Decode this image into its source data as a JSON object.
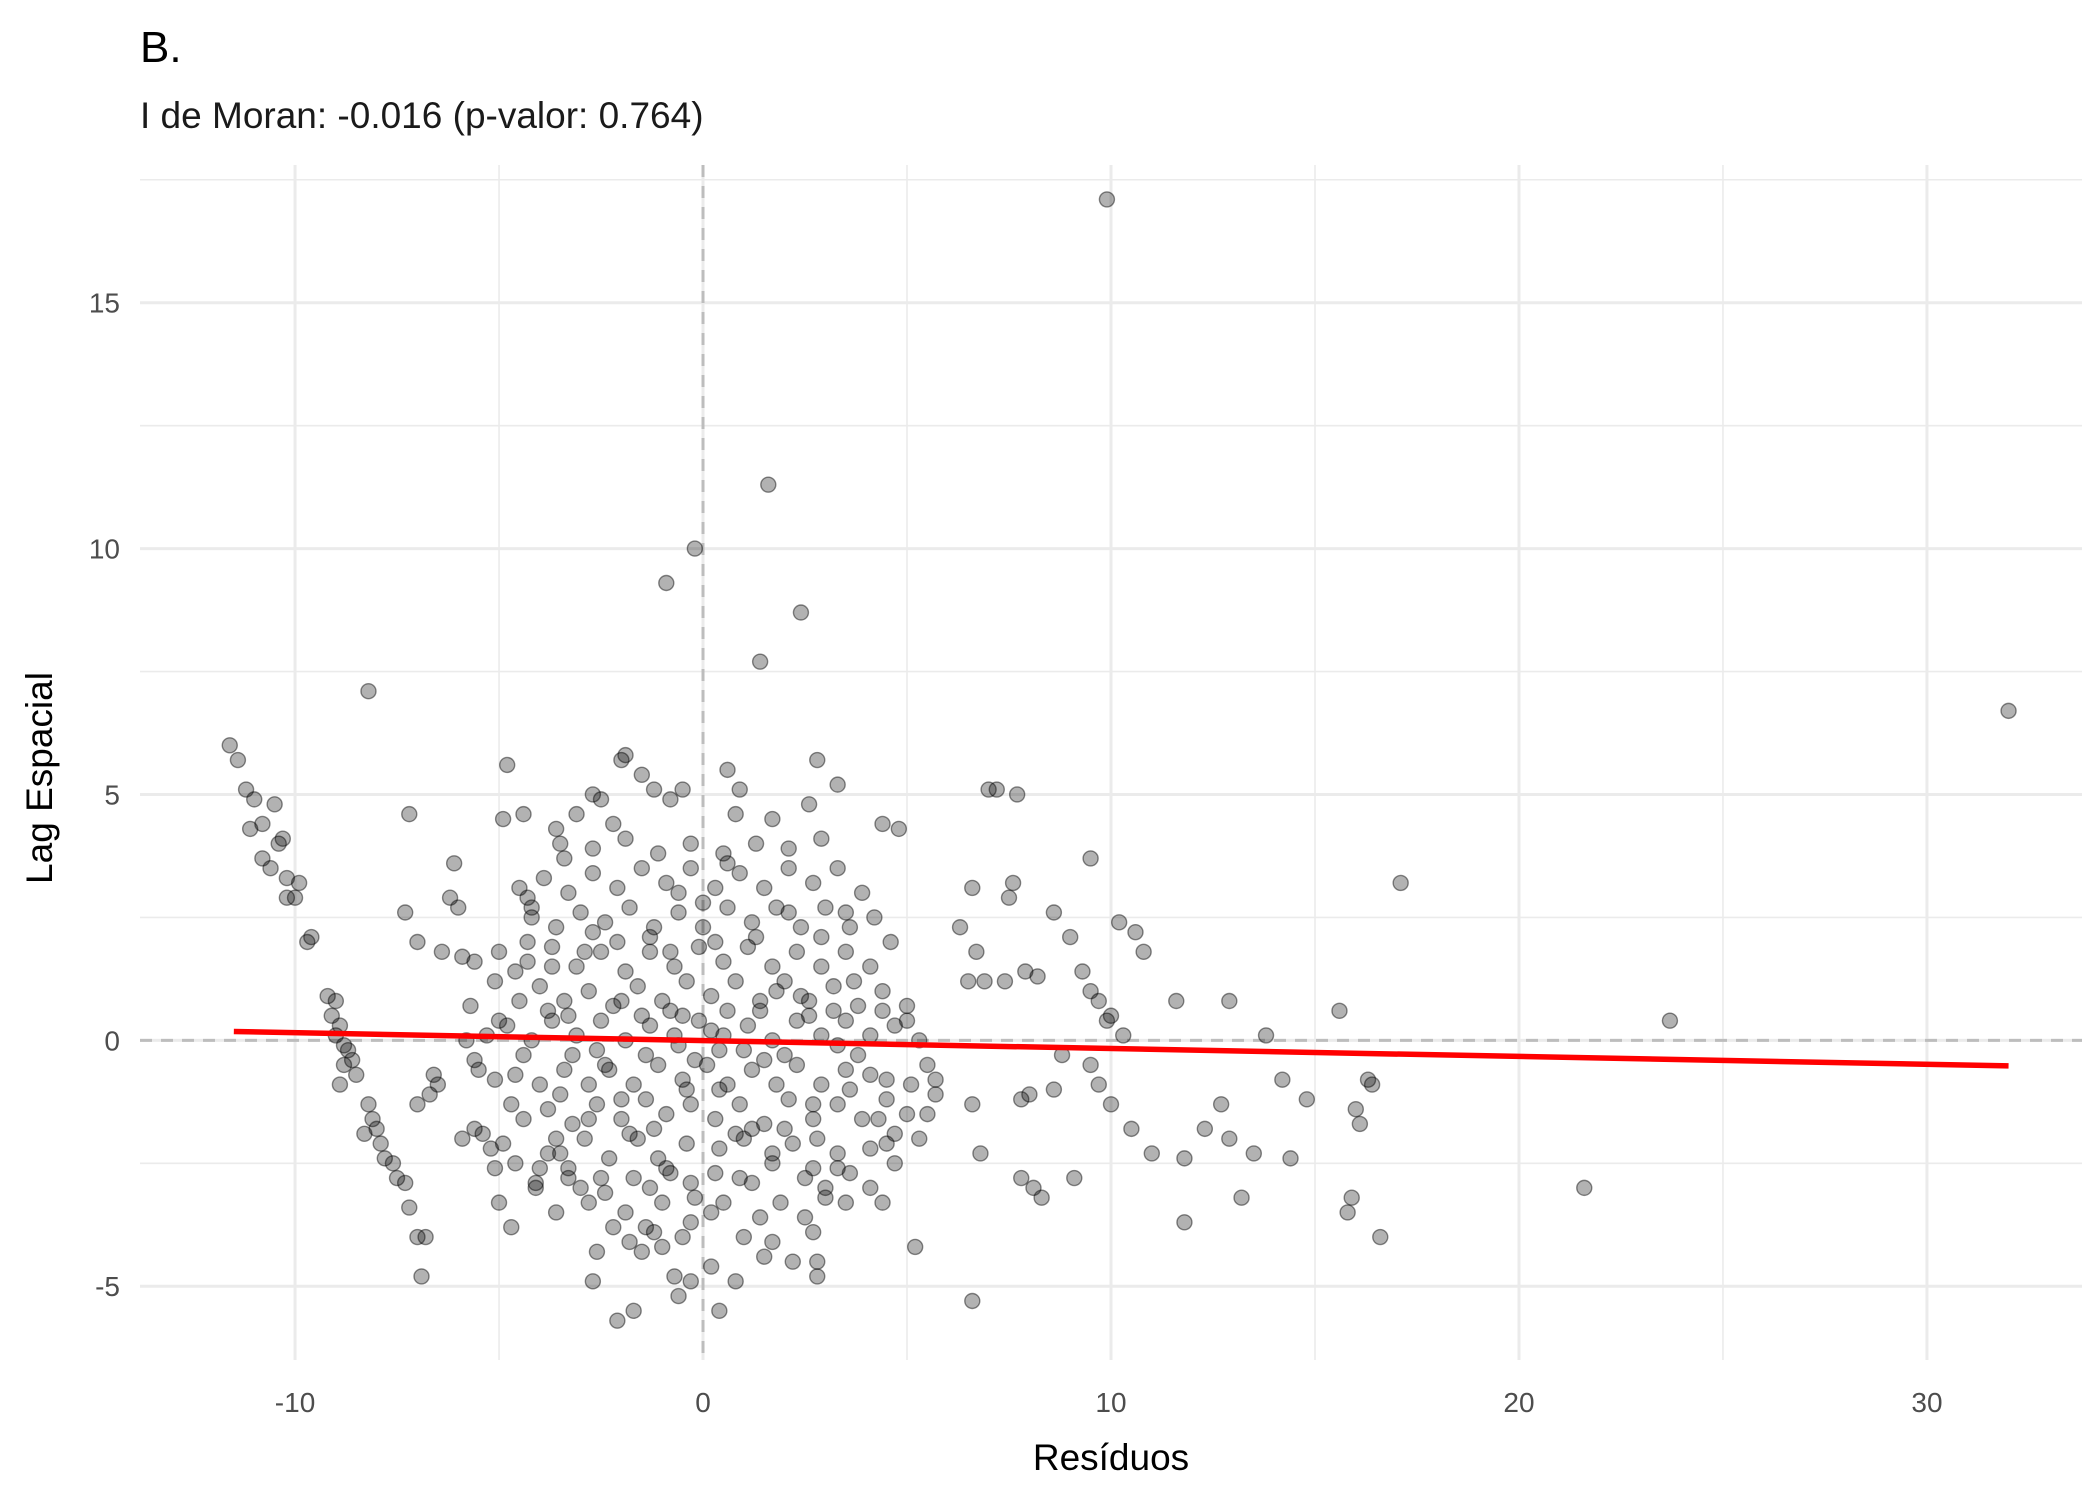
{
  "chart_data": {
    "type": "scatter",
    "title": "B.",
    "subtitle": "I de Moran: -0.016 (p-valor: 0.764)",
    "xlabel": "Resíduos",
    "ylabel": "Lag Espacial",
    "xlim": [
      -13.8,
      33.8
    ],
    "ylim": [
      -6.5,
      17.8
    ],
    "x_ticks": [
      -10,
      0,
      10,
      20,
      30
    ],
    "y_ticks": [
      -5,
      0,
      5,
      10,
      15
    ],
    "x_tick_labels": [
      "-10",
      "0",
      "10",
      "20",
      "30"
    ],
    "y_tick_labels": [
      "-5",
      "0",
      "5",
      "10",
      "15"
    ],
    "grid": true,
    "reference_lines": {
      "x": 0,
      "y": 0
    },
    "regression_line": {
      "x": [
        -11.5,
        32
      ],
      "y": [
        0.18,
        -0.52
      ]
    },
    "colors": {
      "points": "#000000",
      "regression": "#ff0000",
      "grid": "#ebebeb",
      "reference": "#bdbdbd"
    },
    "points": [
      [
        9.9,
        17.1
      ],
      [
        1.6,
        11.3
      ],
      [
        -0.2,
        10.0
      ],
      [
        -0.9,
        9.3
      ],
      [
        2.4,
        8.7
      ],
      [
        1.4,
        7.7
      ],
      [
        -8.2,
        7.1
      ],
      [
        32.0,
        6.7
      ],
      [
        -11.6,
        6.0
      ],
      [
        -11.4,
        5.7
      ],
      [
        -11.2,
        5.1
      ],
      [
        -11.0,
        4.9
      ],
      [
        -10.5,
        4.8
      ],
      [
        -10.8,
        4.4
      ],
      [
        -11.1,
        4.3
      ],
      [
        -10.3,
        4.1
      ],
      [
        -10.4,
        4.0
      ],
      [
        -10.8,
        3.7
      ],
      [
        -10.6,
        3.5
      ],
      [
        -10.2,
        3.3
      ],
      [
        -9.9,
        3.2
      ],
      [
        -10.2,
        2.9
      ],
      [
        -10.0,
        2.9
      ],
      [
        -9.6,
        2.1
      ],
      [
        -9.7,
        2.0
      ],
      [
        -9.2,
        0.9
      ],
      [
        -9.0,
        0.8
      ],
      [
        -9.1,
        0.5
      ],
      [
        -8.9,
        0.3
      ],
      [
        -9.0,
        0.1
      ],
      [
        -8.8,
        -0.1
      ],
      [
        -8.7,
        -0.2
      ],
      [
        -8.6,
        -0.4
      ],
      [
        -8.8,
        -0.5
      ],
      [
        -8.5,
        -0.7
      ],
      [
        -8.9,
        -0.9
      ],
      [
        -8.2,
        -1.3
      ],
      [
        -8.1,
        -1.6
      ],
      [
        -8.0,
        -1.8
      ],
      [
        -8.3,
        -1.9
      ],
      [
        -7.9,
        -2.1
      ],
      [
        -7.8,
        -2.4
      ],
      [
        -7.6,
        -2.5
      ],
      [
        -7.5,
        -2.8
      ],
      [
        -7.3,
        -2.9
      ],
      [
        -7.2,
        -3.4
      ],
      [
        -7.0,
        -4.0
      ],
      [
        -6.8,
        -4.0
      ],
      [
        -6.9,
        -4.8
      ],
      [
        -7.3,
        2.6
      ],
      [
        -7.2,
        4.6
      ],
      [
        -7.0,
        2.0
      ],
      [
        -6.1,
        3.6
      ],
      [
        -6.2,
        2.9
      ],
      [
        -6.0,
        2.7
      ],
      [
        -6.4,
        1.8
      ],
      [
        -5.9,
        1.7
      ],
      [
        -5.7,
        0.7
      ],
      [
        -5.8,
        0.0
      ],
      [
        -6.6,
        -0.7
      ],
      [
        -6.5,
        -0.9
      ],
      [
        -6.7,
        -1.1
      ],
      [
        -7.0,
        -1.3
      ],
      [
        -5.6,
        -1.8
      ],
      [
        -5.9,
        -2.0
      ],
      [
        -5.1,
        -2.6
      ],
      [
        -5.0,
        -3.3
      ],
      [
        -4.7,
        -3.8
      ],
      [
        -4.8,
        5.6
      ],
      [
        -4.9,
        4.5
      ],
      [
        -4.4,
        4.6
      ],
      [
        -4.5,
        3.1
      ],
      [
        -4.3,
        2.9
      ],
      [
        -4.2,
        2.7
      ],
      [
        -3.6,
        4.3
      ],
      [
        -3.4,
        3.7
      ],
      [
        -3.1,
        4.6
      ],
      [
        -2.7,
        5.0
      ],
      [
        -2.5,
        4.9
      ],
      [
        -2.2,
        4.4
      ],
      [
        -1.9,
        5.8
      ],
      [
        -2.0,
        5.7
      ],
      [
        -1.5,
        5.4
      ],
      [
        -1.2,
        5.1
      ],
      [
        -0.8,
        4.9
      ],
      [
        -0.5,
        5.1
      ],
      [
        0.6,
        5.5
      ],
      [
        0.9,
        5.1
      ],
      [
        0.8,
        4.6
      ],
      [
        2.8,
        5.7
      ],
      [
        3.3,
        5.2
      ],
      [
        2.6,
        4.8
      ],
      [
        1.7,
        4.5
      ],
      [
        4.4,
        4.4
      ],
      [
        4.8,
        4.3
      ],
      [
        7.0,
        5.1
      ],
      [
        7.2,
        5.1
      ],
      [
        7.7,
        5.0
      ],
      [
        9.5,
        3.7
      ],
      [
        6.6,
        3.1
      ],
      [
        7.5,
        2.9
      ],
      [
        7.6,
        3.2
      ],
      [
        17.1,
        3.2
      ],
      [
        10.2,
        2.4
      ],
      [
        10.6,
        2.2
      ],
      [
        10.8,
        1.8
      ],
      [
        8.6,
        2.6
      ],
      [
        9.0,
        2.1
      ],
      [
        8.2,
        1.3
      ],
      [
        7.9,
        1.4
      ],
      [
        6.3,
        2.3
      ],
      [
        6.7,
        1.8
      ],
      [
        6.5,
        1.2
      ],
      [
        6.9,
        1.2
      ],
      [
        7.4,
        1.2
      ],
      [
        9.3,
        1.4
      ],
      [
        9.5,
        1.0
      ],
      [
        9.7,
        0.8
      ],
      [
        10.0,
        0.5
      ],
      [
        10.3,
        0.1
      ],
      [
        11.6,
        0.8
      ],
      [
        12.9,
        0.8
      ],
      [
        15.6,
        0.6
      ],
      [
        23.7,
        0.4
      ],
      [
        13.8,
        0.1
      ],
      [
        9.9,
        0.4
      ],
      [
        8.8,
        -0.3
      ],
      [
        9.5,
        -0.5
      ],
      [
        14.2,
        -0.8
      ],
      [
        14.8,
        -1.2
      ],
      [
        16.3,
        -0.8
      ],
      [
        16.4,
        -0.9
      ],
      [
        16.0,
        -1.4
      ],
      [
        16.1,
        -1.7
      ],
      [
        12.7,
        -1.3
      ],
      [
        12.3,
        -1.8
      ],
      [
        10.5,
        -1.8
      ],
      [
        11.0,
        -2.3
      ],
      [
        11.8,
        -2.4
      ],
      [
        12.9,
        -2.0
      ],
      [
        13.5,
        -2.3
      ],
      [
        14.4,
        -2.4
      ],
      [
        10.0,
        -1.3
      ],
      [
        9.7,
        -0.9
      ],
      [
        8.6,
        -1.0
      ],
      [
        8.0,
        -1.1
      ],
      [
        7.8,
        -1.2
      ],
      [
        8.1,
        -3.0
      ],
      [
        8.3,
        -3.2
      ],
      [
        7.8,
        -2.8
      ],
      [
        9.1,
        -2.8
      ],
      [
        6.6,
        -1.3
      ],
      [
        6.8,
        -2.3
      ],
      [
        6.6,
        -5.3
      ],
      [
        5.2,
        -4.2
      ],
      [
        5.7,
        -1.1
      ],
      [
        5.1,
        -0.9
      ],
      [
        5.7,
        -0.8
      ],
      [
        13.2,
        -3.2
      ],
      [
        11.8,
        -3.7
      ],
      [
        15.9,
        -3.2
      ],
      [
        15.8,
        -3.5
      ],
      [
        16.6,
        -4.0
      ],
      [
        21.6,
        -3.0
      ],
      [
        -2.1,
        -5.7
      ],
      [
        -1.7,
        -5.5
      ],
      [
        -0.6,
        -5.2
      ],
      [
        0.4,
        -5.5
      ],
      [
        -0.3,
        -4.9
      ],
      [
        0.2,
        -4.6
      ],
      [
        0.8,
        -4.9
      ],
      [
        -0.7,
        -4.8
      ],
      [
        -2.6,
        -4.3
      ],
      [
        -2.7,
        -4.9
      ],
      [
        2.8,
        -4.8
      ],
      [
        2.8,
        -4.5
      ],
      [
        2.2,
        -4.5
      ],
      [
        1.7,
        -4.1
      ],
      [
        1.5,
        -4.4
      ],
      [
        -1.8,
        -4.1
      ],
      [
        -1.5,
        -4.3
      ],
      [
        -1.2,
        -3.9
      ],
      [
        -0.3,
        -3.7
      ],
      [
        -0.5,
        -4.0
      ],
      [
        -3.6,
        -3.5
      ],
      [
        -4.1,
        -3.0
      ],
      [
        -3.3,
        -2.8
      ],
      [
        -3.8,
        -2.3
      ],
      [
        -2.8,
        -3.3
      ],
      [
        -2.4,
        -3.1
      ],
      [
        -1.9,
        -3.5
      ],
      [
        -1.3,
        -3.0
      ],
      [
        -0.8,
        -2.7
      ],
      [
        -1.0,
        -3.3
      ],
      [
        -0.3,
        -2.9
      ],
      [
        0.3,
        -2.7
      ],
      [
        0.5,
        -3.3
      ],
      [
        1.2,
        -2.9
      ],
      [
        1.9,
        -3.3
      ],
      [
        2.5,
        -3.6
      ],
      [
        3.0,
        -3.2
      ],
      [
        3.5,
        -3.3
      ],
      [
        4.1,
        -3.0
      ],
      [
        4.4,
        -3.3
      ],
      [
        4.7,
        -2.5
      ],
      [
        4.5,
        -2.1
      ],
      [
        5.3,
        -2.0
      ],
      [
        5.5,
        -1.5
      ],
      [
        3.6,
        -2.7
      ],
      [
        3.3,
        -2.3
      ],
      [
        2.7,
        -2.6
      ],
      [
        2.2,
        -2.1
      ],
      [
        1.7,
        -2.5
      ],
      [
        1.0,
        -2.0
      ],
      [
        0.4,
        -2.2
      ],
      [
        -0.4,
        -2.1
      ],
      [
        -1.1,
        -2.4
      ],
      [
        -1.6,
        -2.0
      ],
      [
        -2.3,
        -2.4
      ],
      [
        -2.9,
        -2.0
      ],
      [
        -3.5,
        -2.3
      ],
      [
        -4.0,
        -2.6
      ],
      [
        -4.6,
        -2.5
      ],
      [
        -4.9,
        -2.1
      ],
      [
        -5.2,
        -2.2
      ],
      [
        -5.4,
        -1.9
      ],
      [
        -4.4,
        -1.6
      ],
      [
        -3.8,
        -1.4
      ],
      [
        -3.2,
        -1.7
      ],
      [
        -2.6,
        -1.3
      ],
      [
        -2.0,
        -1.6
      ],
      [
        -1.4,
        -1.2
      ],
      [
        -0.9,
        -1.5
      ],
      [
        -0.3,
        -1.3
      ],
      [
        0.3,
        -1.6
      ],
      [
        0.9,
        -1.3
      ],
      [
        1.5,
        -1.7
      ],
      [
        2.1,
        -1.2
      ],
      [
        2.7,
        -1.6
      ],
      [
        3.3,
        -1.3
      ],
      [
        3.9,
        -1.6
      ],
      [
        4.5,
        -1.2
      ],
      [
        5.0,
        -1.5
      ],
      [
        4.1,
        -0.7
      ],
      [
        3.5,
        -0.6
      ],
      [
        2.9,
        -0.9
      ],
      [
        2.3,
        -0.5
      ],
      [
        1.8,
        -0.9
      ],
      [
        1.2,
        -0.6
      ],
      [
        0.6,
        -0.9
      ],
      [
        0.1,
        -0.5
      ],
      [
        -0.5,
        -0.8
      ],
      [
        -1.1,
        -0.5
      ],
      [
        -1.7,
        -0.9
      ],
      [
        -2.3,
        -0.6
      ],
      [
        -2.8,
        -0.9
      ],
      [
        -3.4,
        -0.6
      ],
      [
        -4.0,
        -0.9
      ],
      [
        -4.6,
        -0.7
      ],
      [
        -5.1,
        -0.8
      ],
      [
        -5.6,
        -0.4
      ],
      [
        -5.3,
        0.1
      ],
      [
        -4.8,
        0.3
      ],
      [
        -4.2,
        0.0
      ],
      [
        -3.7,
        0.4
      ],
      [
        -3.1,
        0.1
      ],
      [
        -2.5,
        0.4
      ],
      [
        -1.9,
        0.0
      ],
      [
        -1.3,
        0.3
      ],
      [
        -0.7,
        0.1
      ],
      [
        -0.1,
        0.4
      ],
      [
        0.5,
        0.1
      ],
      [
        1.1,
        0.3
      ],
      [
        1.7,
        0.0
      ],
      [
        2.3,
        0.4
      ],
      [
        2.9,
        0.1
      ],
      [
        3.5,
        0.4
      ],
      [
        4.1,
        0.1
      ],
      [
        4.7,
        0.3
      ],
      [
        5.3,
        0.0
      ],
      [
        5.0,
        0.7
      ],
      [
        4.4,
        1.0
      ],
      [
        3.8,
        0.7
      ],
      [
        3.2,
        1.1
      ],
      [
        2.6,
        0.8
      ],
      [
        2.0,
        1.2
      ],
      [
        1.4,
        0.8
      ],
      [
        0.8,
        1.2
      ],
      [
        0.2,
        0.9
      ],
      [
        -0.4,
        1.2
      ],
      [
        -1.0,
        0.8
      ],
      [
        -1.6,
        1.1
      ],
      [
        -2.2,
        0.7
      ],
      [
        -2.8,
        1.0
      ],
      [
        -3.4,
        0.8
      ],
      [
        -4.0,
        1.1
      ],
      [
        -4.6,
        1.4
      ],
      [
        -5.1,
        1.2
      ],
      [
        -5.6,
        1.6
      ],
      [
        -5.0,
        1.8
      ],
      [
        -4.3,
        1.6
      ],
      [
        -3.7,
        1.9
      ],
      [
        -3.1,
        1.5
      ],
      [
        -2.5,
        1.8
      ],
      [
        -1.9,
        1.4
      ],
      [
        -1.3,
        1.8
      ],
      [
        -0.7,
        1.5
      ],
      [
        -0.1,
        1.9
      ],
      [
        0.5,
        1.6
      ],
      [
        1.1,
        1.9
      ],
      [
        1.7,
        1.5
      ],
      [
        2.3,
        1.8
      ],
      [
        2.9,
        1.5
      ],
      [
        3.5,
        1.8
      ],
      [
        4.1,
        1.5
      ],
      [
        4.6,
        2.0
      ],
      [
        4.2,
        2.5
      ],
      [
        3.6,
        2.3
      ],
      [
        3.0,
        2.7
      ],
      [
        2.4,
        2.3
      ],
      [
        1.8,
        2.7
      ],
      [
        1.2,
        2.4
      ],
      [
        0.6,
        2.7
      ],
      [
        0.0,
        2.3
      ],
      [
        -0.6,
        2.6
      ],
      [
        -1.2,
        2.3
      ],
      [
        -1.8,
        2.7
      ],
      [
        -2.4,
        2.4
      ],
      [
        -3.0,
        2.6
      ],
      [
        -3.6,
        2.3
      ],
      [
        -4.2,
        2.5
      ],
      [
        -3.9,
        3.3
      ],
      [
        -3.3,
        3.0
      ],
      [
        -2.7,
        3.4
      ],
      [
        -2.1,
        3.1
      ],
      [
        -1.5,
        3.5
      ],
      [
        -0.9,
        3.2
      ],
      [
        -0.3,
        3.5
      ],
      [
        0.3,
        3.1
      ],
      [
        0.9,
        3.4
      ],
      [
        1.5,
        3.1
      ],
      [
        2.1,
        3.5
      ],
      [
        2.7,
        3.2
      ],
      [
        3.3,
        3.5
      ],
      [
        3.9,
        3.0
      ],
      [
        2.9,
        4.1
      ],
      [
        2.1,
        3.9
      ],
      [
        1.3,
        4.0
      ],
      [
        0.5,
        3.8
      ],
      [
        -0.3,
        4.0
      ],
      [
        -1.1,
        3.8
      ],
      [
        -1.9,
        4.1
      ],
      [
        -2.7,
        3.9
      ],
      [
        -3.5,
        4.0
      ],
      [
        0.0,
        2.8
      ],
      [
        0.3,
        2.0
      ],
      [
        -0.5,
        0.5
      ],
      [
        0.4,
        -0.2
      ],
      [
        -0.2,
        -0.4
      ],
      [
        0.6,
        0.6
      ],
      [
        -0.6,
        -0.1
      ],
      [
        0.2,
        0.2
      ],
      [
        -0.8,
        0.6
      ],
      [
        1.0,
        -0.2
      ],
      [
        -1.4,
        -0.3
      ],
      [
        1.4,
        0.6
      ],
      [
        -2.0,
        0.8
      ],
      [
        2.0,
        -0.3
      ],
      [
        -2.6,
        -0.2
      ],
      [
        2.6,
        0.5
      ],
      [
        -3.2,
        -0.3
      ],
      [
        3.2,
        0.6
      ],
      [
        -3.8,
        0.6
      ],
      [
        3.8,
        -0.3
      ],
      [
        -4.4,
        -0.3
      ],
      [
        4.4,
        0.6
      ],
      [
        -0.4,
        -1.0
      ],
      [
        0.4,
        -1.0
      ],
      [
        -1.2,
        -1.8
      ],
      [
        1.2,
        -1.8
      ],
      [
        -2.0,
        -1.2
      ],
      [
        2.0,
        -1.8
      ],
      [
        -2.8,
        -1.6
      ],
      [
        2.8,
        -2.0
      ],
      [
        -3.6,
        -2.0
      ],
      [
        3.6,
        -1.0
      ],
      [
        -0.9,
        -2.6
      ],
      [
        0.9,
        -2.8
      ],
      [
        -1.7,
        -2.8
      ],
      [
        1.7,
        -2.3
      ],
      [
        -2.5,
        -2.8
      ],
      [
        2.5,
        -2.8
      ],
      [
        -3.3,
        -2.6
      ],
      [
        3.3,
        -2.6
      ],
      [
        -0.2,
        -3.2
      ],
      [
        0.2,
        -3.5
      ],
      [
        -1.4,
        -3.8
      ],
      [
        1.4,
        -3.6
      ],
      [
        -2.2,
        -3.8
      ],
      [
        2.7,
        -3.9
      ],
      [
        -0.6,
        3.0
      ],
      [
        0.6,
        3.6
      ],
      [
        -1.3,
        2.1
      ],
      [
        1.3,
        2.1
      ],
      [
        -2.1,
        2.0
      ],
      [
        2.1,
        2.6
      ],
      [
        -2.9,
        1.8
      ],
      [
        2.9,
        2.1
      ],
      [
        -3.7,
        1.5
      ],
      [
        3.7,
        1.2
      ],
      [
        -4.5,
        0.8
      ],
      [
        4.5,
        -0.8
      ],
      [
        -5.0,
        0.4
      ],
      [
        5.0,
        0.4
      ],
      [
        -5.5,
        -0.6
      ],
      [
        5.5,
        -0.5
      ],
      [
        -4.7,
        -1.3
      ],
      [
        4.7,
        -1.9
      ],
      [
        -4.1,
        -2.9
      ],
      [
        4.1,
        -2.2
      ],
      [
        -3.0,
        -3.0
      ],
      [
        3.0,
        -3.0
      ],
      [
        -1.0,
        -4.2
      ],
      [
        1.0,
        -4.0
      ],
      [
        -1.5,
        0.5
      ],
      [
        1.5,
        -0.4
      ],
      [
        -2.4,
        -0.5
      ],
      [
        2.4,
        0.9
      ],
      [
        -3.3,
        0.5
      ],
      [
        3.3,
        -0.1
      ],
      [
        -0.8,
        1.8
      ],
      [
        0.8,
        -1.9
      ],
      [
        -1.8,
        -1.9
      ],
      [
        1.8,
        1.0
      ],
      [
        -2.7,
        2.2
      ],
      [
        2.7,
        -1.3
      ],
      [
        -3.5,
        -1.1
      ],
      [
        3.5,
        2.6
      ],
      [
        -4.3,
        2.0
      ],
      [
        4.3,
        -1.6
      ]
    ]
  }
}
